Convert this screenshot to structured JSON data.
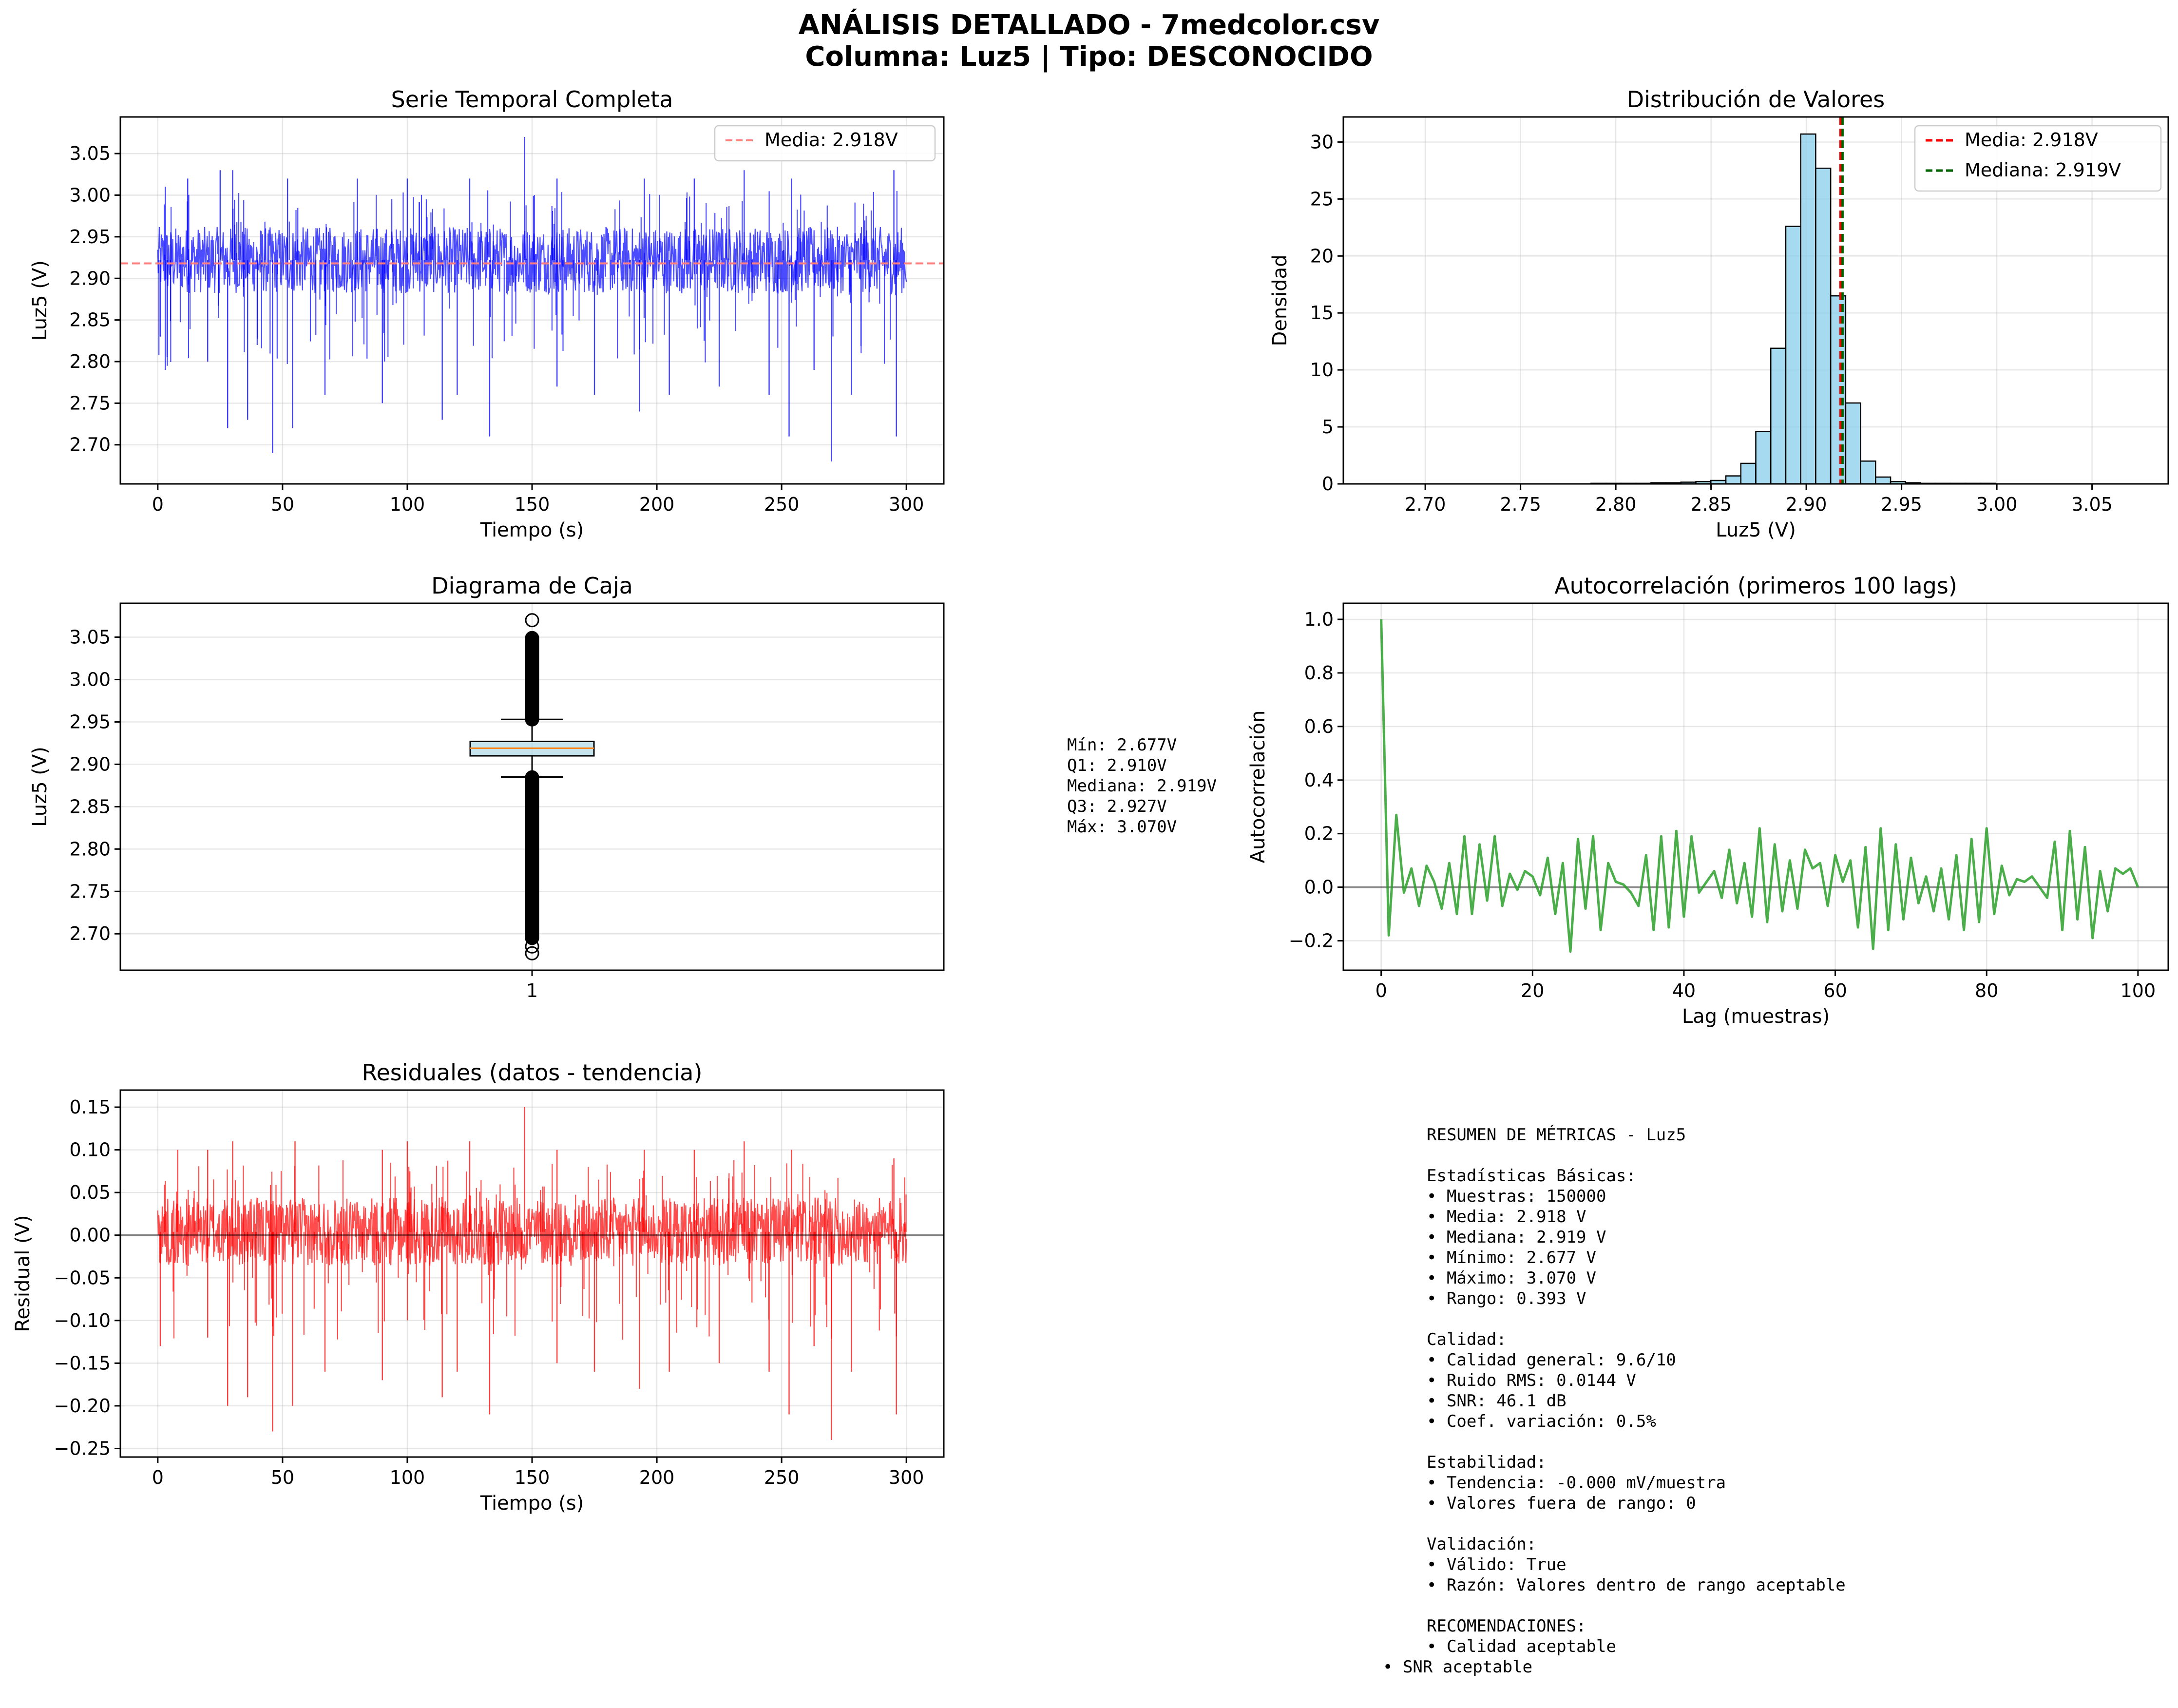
{
  "figure": {
    "title_line1": "ANÁLISIS DETALLADO - 7medcolor.csv",
    "title_line2": "Columna: Luz5 | Tipo: DESCONOCIDO"
  },
  "colors": {
    "series_blue": "#0000ff",
    "mean_line_faint": "#ff7f7f",
    "hist_fill": "#87ceeb",
    "mean_red": "#ff0000",
    "median_green": "#006400",
    "acf_green": "#2ca02c",
    "residual_red": "#ff0000",
    "box_fill": "#add8e6",
    "box_median": "#ff7f0e"
  },
  "chart_data": [
    {
      "id": "series",
      "type": "line",
      "title": "Serie Temporal Completa",
      "xlabel": "Tiempo (s)",
      "ylabel": "Luz5 (V)",
      "xlim": [
        -15,
        315
      ],
      "ylim": [
        2.653,
        3.094
      ],
      "xticks": [
        0,
        50,
        100,
        150,
        200,
        250,
        300
      ],
      "yticks": [
        2.7,
        2.75,
        2.8,
        2.85,
        2.9,
        2.95,
        3.0,
        3.05
      ],
      "ytick_labels": [
        "2.70",
        "2.75",
        "2.80",
        "2.85",
        "2.90",
        "2.95",
        "3.00",
        "3.05"
      ],
      "grid": true,
      "legend": {
        "position": "upper right",
        "entries": [
          "Media: 2.918V"
        ]
      },
      "mean_line": 2.918,
      "band": {
        "low": 2.882,
        "high": 2.962
      },
      "spikes_up": [
        [
          3,
          3.01
        ],
        [
          12,
          3.02
        ],
        [
          25,
          3.03
        ],
        [
          30,
          3.03
        ],
        [
          52,
          3.02
        ],
        [
          80,
          3.02
        ],
        [
          100,
          3.02
        ],
        [
          125,
          3.02
        ],
        [
          147,
          3.07
        ],
        [
          160,
          3.02
        ],
        [
          195,
          3.02
        ],
        [
          215,
          3.02
        ],
        [
          235,
          3.03
        ],
        [
          254,
          3.02
        ],
        [
          295,
          3.03
        ]
      ],
      "spikes_down": [
        [
          1,
          2.83
        ],
        [
          3,
          2.79
        ],
        [
          20,
          2.8
        ],
        [
          28,
          2.72
        ],
        [
          36,
          2.73
        ],
        [
          46,
          2.69
        ],
        [
          54,
          2.72
        ],
        [
          67,
          2.76
        ],
        [
          90,
          2.75
        ],
        [
          114,
          2.73
        ],
        [
          120,
          2.76
        ],
        [
          133,
          2.71
        ],
        [
          160,
          2.77
        ],
        [
          175,
          2.76
        ],
        [
          193,
          2.74
        ],
        [
          205,
          2.76
        ],
        [
          225,
          2.77
        ],
        [
          245,
          2.76
        ],
        [
          253,
          2.71
        ],
        [
          263,
          2.79
        ],
        [
          270,
          2.68
        ],
        [
          278,
          2.76
        ],
        [
          296,
          2.71
        ]
      ]
    },
    {
      "id": "hist",
      "type": "bar",
      "title": "Distribución de Valores",
      "xlabel": "Luz5 (V)",
      "ylabel": "Densidad",
      "xlim": [
        2.657,
        3.09
      ],
      "ylim": [
        0,
        32.2
      ],
      "xticks": [
        2.7,
        2.75,
        2.8,
        2.85,
        2.9,
        2.95,
        3.0,
        3.05
      ],
      "xtick_labels": [
        "2.70",
        "2.75",
        "2.80",
        "2.85",
        "2.90",
        "2.95",
        "3.00",
        "3.05"
      ],
      "yticks": [
        0,
        5,
        10,
        15,
        20,
        25,
        30
      ],
      "grid": true,
      "legend": {
        "position": "upper right",
        "entries": [
          "Media: 2.918V",
          "Mediana: 2.919V"
        ]
      },
      "bin_start": 2.677,
      "bin_width": 0.00786,
      "values": [
        0,
        0,
        0,
        0,
        0,
        0,
        0,
        0,
        0,
        0,
        0,
        0,
        0,
        0,
        0.05,
        0.05,
        0.05,
        0.05,
        0.1,
        0.1,
        0.15,
        0.2,
        0.3,
        0.7,
        1.8,
        4.6,
        11.9,
        22.6,
        30.7,
        27.7,
        16.5,
        7.1,
        2.0,
        0.6,
        0.2,
        0.1,
        0.05,
        0.05,
        0.05,
        0.05,
        0.05,
        0,
        0,
        0,
        0,
        0,
        0,
        0,
        0,
        0
      ],
      "mean": 2.918,
      "median": 2.919
    },
    {
      "id": "box",
      "type": "box",
      "title": "Diagrama de Caja",
      "ylabel": "Luz5 (V)",
      "categories": [
        "1"
      ],
      "ylim": [
        2.657,
        3.09
      ],
      "yticks": [
        2.7,
        2.75,
        2.8,
        2.85,
        2.9,
        2.95,
        3.0,
        3.05
      ],
      "ytick_labels": [
        "2.70",
        "2.75",
        "2.80",
        "2.85",
        "2.90",
        "2.95",
        "3.00",
        "3.05"
      ],
      "grid": true,
      "min": 2.677,
      "q1": 2.91,
      "median": 2.919,
      "q3": 2.927,
      "max": 3.07,
      "whisker_low": 2.885,
      "whisker_high": 2.953,
      "outliers_low_range": [
        2.695,
        2.885
      ],
      "outliers_high_range": [
        2.953,
        3.05
      ],
      "outliers_extra": [
        2.677,
        2.685,
        3.07
      ]
    },
    {
      "id": "acf",
      "type": "line",
      "title": "Autocorrelación (primeros 100 lags)",
      "xlabel": "Lag (muestras)",
      "ylabel": "Autocorrelación",
      "xlim": [
        -5,
        104
      ],
      "ylim": [
        -0.31,
        1.06
      ],
      "xticks": [
        0,
        20,
        40,
        60,
        80,
        100
      ],
      "yticks": [
        -0.2,
        0.0,
        0.2,
        0.4,
        0.6,
        0.8,
        1.0
      ],
      "ytick_labels": [
        "−0.2",
        "0.0",
        "0.2",
        "0.4",
        "0.6",
        "0.8",
        "1.0"
      ],
      "grid": true,
      "zero_line": 0,
      "x_start": 0,
      "values": [
        1.0,
        -0.18,
        0.27,
        -0.02,
        0.07,
        -0.07,
        0.08,
        0.02,
        -0.08,
        0.09,
        -0.1,
        0.19,
        -0.1,
        0.16,
        -0.05,
        0.19,
        -0.07,
        0.05,
        -0.01,
        0.06,
        0.04,
        -0.03,
        0.11,
        -0.1,
        0.09,
        -0.24,
        0.18,
        -0.08,
        0.19,
        -0.16,
        0.09,
        0.02,
        0.01,
        -0.02,
        -0.07,
        0.12,
        -0.16,
        0.19,
        -0.15,
        0.21,
        -0.11,
        0.19,
        -0.02,
        0.02,
        0.06,
        -0.04,
        0.14,
        -0.06,
        0.09,
        -0.11,
        0.22,
        -0.13,
        0.16,
        -0.09,
        0.1,
        -0.08,
        0.14,
        0.07,
        0.09,
        -0.07,
        0.12,
        0.02,
        0.1,
        -0.15,
        0.15,
        -0.23,
        0.22,
        -0.16,
        0.16,
        -0.12,
        0.11,
        -0.06,
        0.04,
        -0.09,
        0.07,
        -0.12,
        0.12,
        -0.16,
        0.18,
        -0.13,
        0.22,
        -0.1,
        0.08,
        -0.03,
        0.03,
        0.02,
        0.04,
        0.0,
        -0.04,
        0.17,
        -0.16,
        0.21,
        -0.12,
        0.15,
        -0.19,
        0.06,
        -0.09,
        0.07,
        0.05,
        0.07,
        0.0
      ]
    },
    {
      "id": "residuals",
      "type": "line",
      "title": "Residuales (datos - tendencia)",
      "xlabel": "Tiempo (s)",
      "ylabel": "Residual (V)",
      "xlim": [
        -15,
        315
      ],
      "ylim": [
        -0.26,
        0.17
      ],
      "xticks": [
        0,
        50,
        100,
        150,
        200,
        250,
        300
      ],
      "yticks": [
        -0.25,
        -0.2,
        -0.15,
        -0.1,
        -0.05,
        0.0,
        0.05,
        0.1,
        0.15
      ],
      "ytick_labels": [
        "−0.25",
        "−0.20",
        "−0.15",
        "−0.10",
        "−0.05",
        "0.00",
        "0.05",
        "0.10",
        "0.15"
      ],
      "grid": true,
      "zero_line": 0,
      "band": {
        "low": -0.036,
        "high": 0.044
      },
      "spikes_up": [
        [
          8,
          0.1
        ],
        [
          20,
          0.1
        ],
        [
          30,
          0.11
        ],
        [
          55,
          0.11
        ],
        [
          90,
          0.1
        ],
        [
          100,
          0.11
        ],
        [
          125,
          0.11
        ],
        [
          147,
          0.15
        ],
        [
          160,
          0.1
        ],
        [
          195,
          0.1
        ],
        [
          215,
          0.1
        ],
        [
          235,
          0.11
        ],
        [
          254,
          0.1
        ],
        [
          295,
          0.09
        ]
      ],
      "spikes_down": [
        [
          1,
          -0.13
        ],
        [
          20,
          -0.12
        ],
        [
          28,
          -0.2
        ],
        [
          36,
          -0.19
        ],
        [
          46,
          -0.23
        ],
        [
          54,
          -0.2
        ],
        [
          67,
          -0.16
        ],
        [
          90,
          -0.17
        ],
        [
          114,
          -0.19
        ],
        [
          120,
          -0.16
        ],
        [
          133,
          -0.21
        ],
        [
          160,
          -0.15
        ],
        [
          175,
          -0.16
        ],
        [
          193,
          -0.18
        ],
        [
          205,
          -0.16
        ],
        [
          225,
          -0.15
        ],
        [
          245,
          -0.16
        ],
        [
          253,
          -0.21
        ],
        [
          263,
          -0.13
        ],
        [
          270,
          -0.24
        ],
        [
          278,
          -0.16
        ],
        [
          296,
          -0.21
        ]
      ]
    }
  ],
  "box_stats_text": [
    "Mín: 2.677V",
    "Q1: 2.910V",
    "Mediana: 2.919V",
    "Q3: 2.927V",
    "Máx: 3.070V"
  ],
  "summary_text": [
    "RESUMEN DE MÉTRICAS - Luz5",
    "",
    "Estadísticas Básicas:",
    "• Muestras: 150000",
    "• Media: 2.918 V",
    "• Mediana: 2.919 V",
    "• Mínimo: 2.677 V",
    "• Máximo: 3.070 V",
    "• Rango: 0.393 V",
    "",
    "Calidad:",
    "• Calidad general: 9.6/10",
    "• Ruido RMS: 0.0144 V",
    "• SNR: 46.1 dB",
    "• Coef. variación: 0.5%",
    "",
    "Estabilidad:",
    "• Tendencia: -0.000 mV/muestra",
    "• Valores fuera de rango: 0",
    "",
    "Validación:",
    "• Válido: True",
    "• Razón: Valores dentro de rango aceptable",
    "",
    "RECOMENDACIONES:",
    "• Calidad aceptable"
  ],
  "summary_last_line": "• SNR aceptable"
}
